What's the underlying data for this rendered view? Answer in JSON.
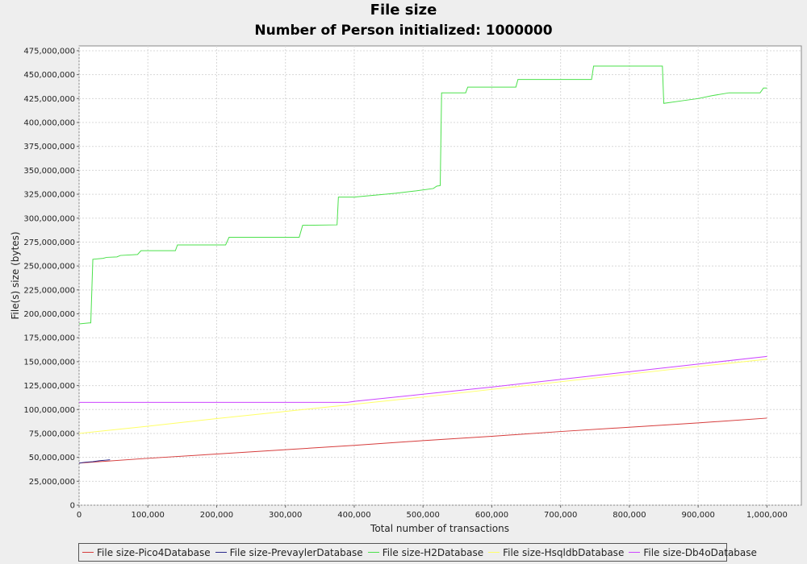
{
  "chart_data": {
    "type": "line",
    "title": "File size",
    "subtitle": "Number of Person initialized: 1000000",
    "xlabel": "Total number of transactions",
    "ylabel": "File(s) size (bytes)",
    "xlim": [
      0,
      1050000
    ],
    "ylim": [
      0,
      480000000
    ],
    "x_ticks": [
      0,
      100000,
      200000,
      300000,
      400000,
      500000,
      600000,
      700000,
      800000,
      900000,
      1000000
    ],
    "x_tick_labels": [
      "0",
      "100,000",
      "200,000",
      "300,000",
      "400,000",
      "500,000",
      "600,000",
      "700,000",
      "800,000",
      "900,000",
      "1,000,000"
    ],
    "y_ticks": [
      0,
      25000000,
      50000000,
      75000000,
      100000000,
      125000000,
      150000000,
      175000000,
      200000000,
      225000000,
      250000000,
      275000000,
      300000000,
      325000000,
      350000000,
      375000000,
      400000000,
      425000000,
      450000000,
      475000000
    ],
    "y_tick_labels": [
      "0",
      "25,000,000",
      "50,000,000",
      "75,000,000",
      "100,000,000",
      "125,000,000",
      "150,000,000",
      "175,000,000",
      "200,000,000",
      "225,000,000",
      "250,000,000",
      "275,000,000",
      "300,000,000",
      "325,000,000",
      "350,000,000",
      "375,000,000",
      "400,000,000",
      "425,000,000",
      "450,000,000",
      "475,000,000"
    ],
    "grid": true,
    "legend_position": "bottom",
    "series": [
      {
        "name": "File size-Pico4Database",
        "color": "#d63c3c",
        "x": [
          0,
          100000,
          200000,
          300000,
          400000,
          500000,
          600000,
          700000,
          800000,
          900000,
          1000000
        ],
        "y": [
          44000000,
          49000000,
          53500000,
          58000000,
          62500000,
          67500000,
          72000000,
          77000000,
          81500000,
          86000000,
          91000000
        ]
      },
      {
        "name": "File size-PrevaylerDatabase",
        "color": "#2a2a8c",
        "x": [
          0,
          10000,
          20000,
          30000,
          38000,
          45000
        ],
        "y": [
          44000000,
          45000000,
          45500000,
          46500000,
          47000000,
          47500000
        ]
      },
      {
        "name": "File size-H2Database",
        "color": "#4be04b",
        "x": [
          0,
          15000,
          17000,
          20000,
          35000,
          40000,
          55000,
          60000,
          85000,
          90000,
          140000,
          143000,
          213000,
          218000,
          320000,
          325000,
          375000,
          377000,
          400000,
          430000,
          460000,
          490000,
          515000,
          520000,
          525000,
          527000,
          562000,
          565000,
          635000,
          638000,
          745000,
          748000,
          848000,
          850000,
          880000,
          900000,
          920000,
          945000,
          990000,
          995000,
          1000000
        ],
        "y": [
          189500000,
          190500000,
          190500000,
          257000000,
          258000000,
          259000000,
          259500000,
          261000000,
          262000000,
          266000000,
          266000000,
          272000000,
          272000000,
          280000000,
          280000000,
          292500000,
          293000000,
          322000000,
          322000000,
          324000000,
          326000000,
          328500000,
          331000000,
          333500000,
          334000000,
          431000000,
          431000000,
          437000000,
          437000000,
          445000000,
          445000000,
          459000000,
          459000000,
          420000000,
          423000000,
          425000000,
          428000000,
          431000000,
          431000000,
          436000000,
          436000000
        ]
      },
      {
        "name": "File size-HsqldbDatabase",
        "color": "#ffff66",
        "x": [
          0,
          100000,
          200000,
          300000,
          400000,
          500000,
          600000,
          700000,
          800000,
          900000,
          1000000
        ],
        "y": [
          75000000,
          82500000,
          90500000,
          98000000,
          105500000,
          113000000,
          121000000,
          129000000,
          137000000,
          145000000,
          152500000
        ]
      },
      {
        "name": "File size-Db4oDatabase",
        "color": "#cc44ff",
        "x": [
          0,
          100000,
          200000,
          300000,
          390000,
          400000,
          500000,
          600000,
          700000,
          800000,
          900000,
          1000000
        ],
        "y": [
          107500000,
          107500000,
          107500000,
          107500000,
          107500000,
          108500000,
          116000000,
          123500000,
          131500000,
          139500000,
          147500000,
          155500000
        ]
      }
    ]
  }
}
